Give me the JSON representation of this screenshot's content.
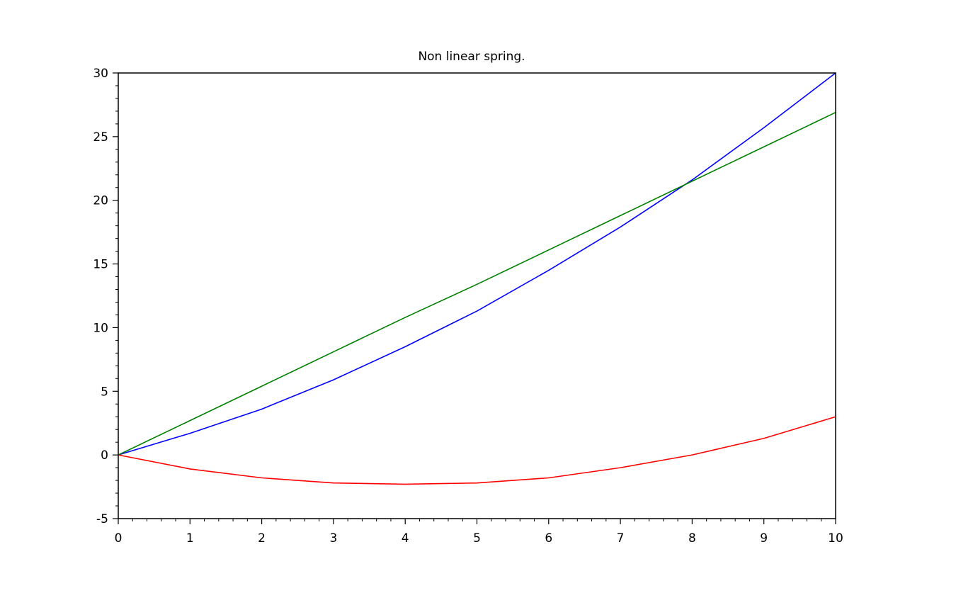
{
  "chart_data": {
    "type": "line",
    "title": "Non linear spring.",
    "xlabel": "",
    "ylabel": "",
    "xlim": [
      0,
      10
    ],
    "ylim": [
      -5,
      30
    ],
    "grid": false,
    "x_ticks": [
      "0",
      "1",
      "2",
      "3",
      "4",
      "5",
      "6",
      "7",
      "8",
      "9",
      "10"
    ],
    "y_ticks": [
      "-5",
      "0",
      "5",
      "10",
      "15",
      "20",
      "25",
      "30"
    ],
    "x": [
      0,
      1,
      2,
      3,
      4,
      5,
      6,
      7,
      8,
      9,
      10
    ],
    "series": [
      {
        "color": "#0000ff",
        "values": [
          0,
          1.7,
          3.6,
          5.9,
          8.5,
          11.3,
          14.5,
          17.9,
          21.6,
          25.7,
          30.0
        ]
      },
      {
        "color": "#008000",
        "values": [
          0,
          2.7,
          5.4,
          8.1,
          10.8,
          13.4,
          16.1,
          18.8,
          21.5,
          24.2,
          26.9
        ]
      },
      {
        "color": "#ff0000",
        "values": [
          0,
          -1.1,
          -1.8,
          -2.2,
          -2.3,
          -2.2,
          -1.8,
          -1.0,
          0.0,
          1.3,
          3.0
        ]
      }
    ]
  }
}
